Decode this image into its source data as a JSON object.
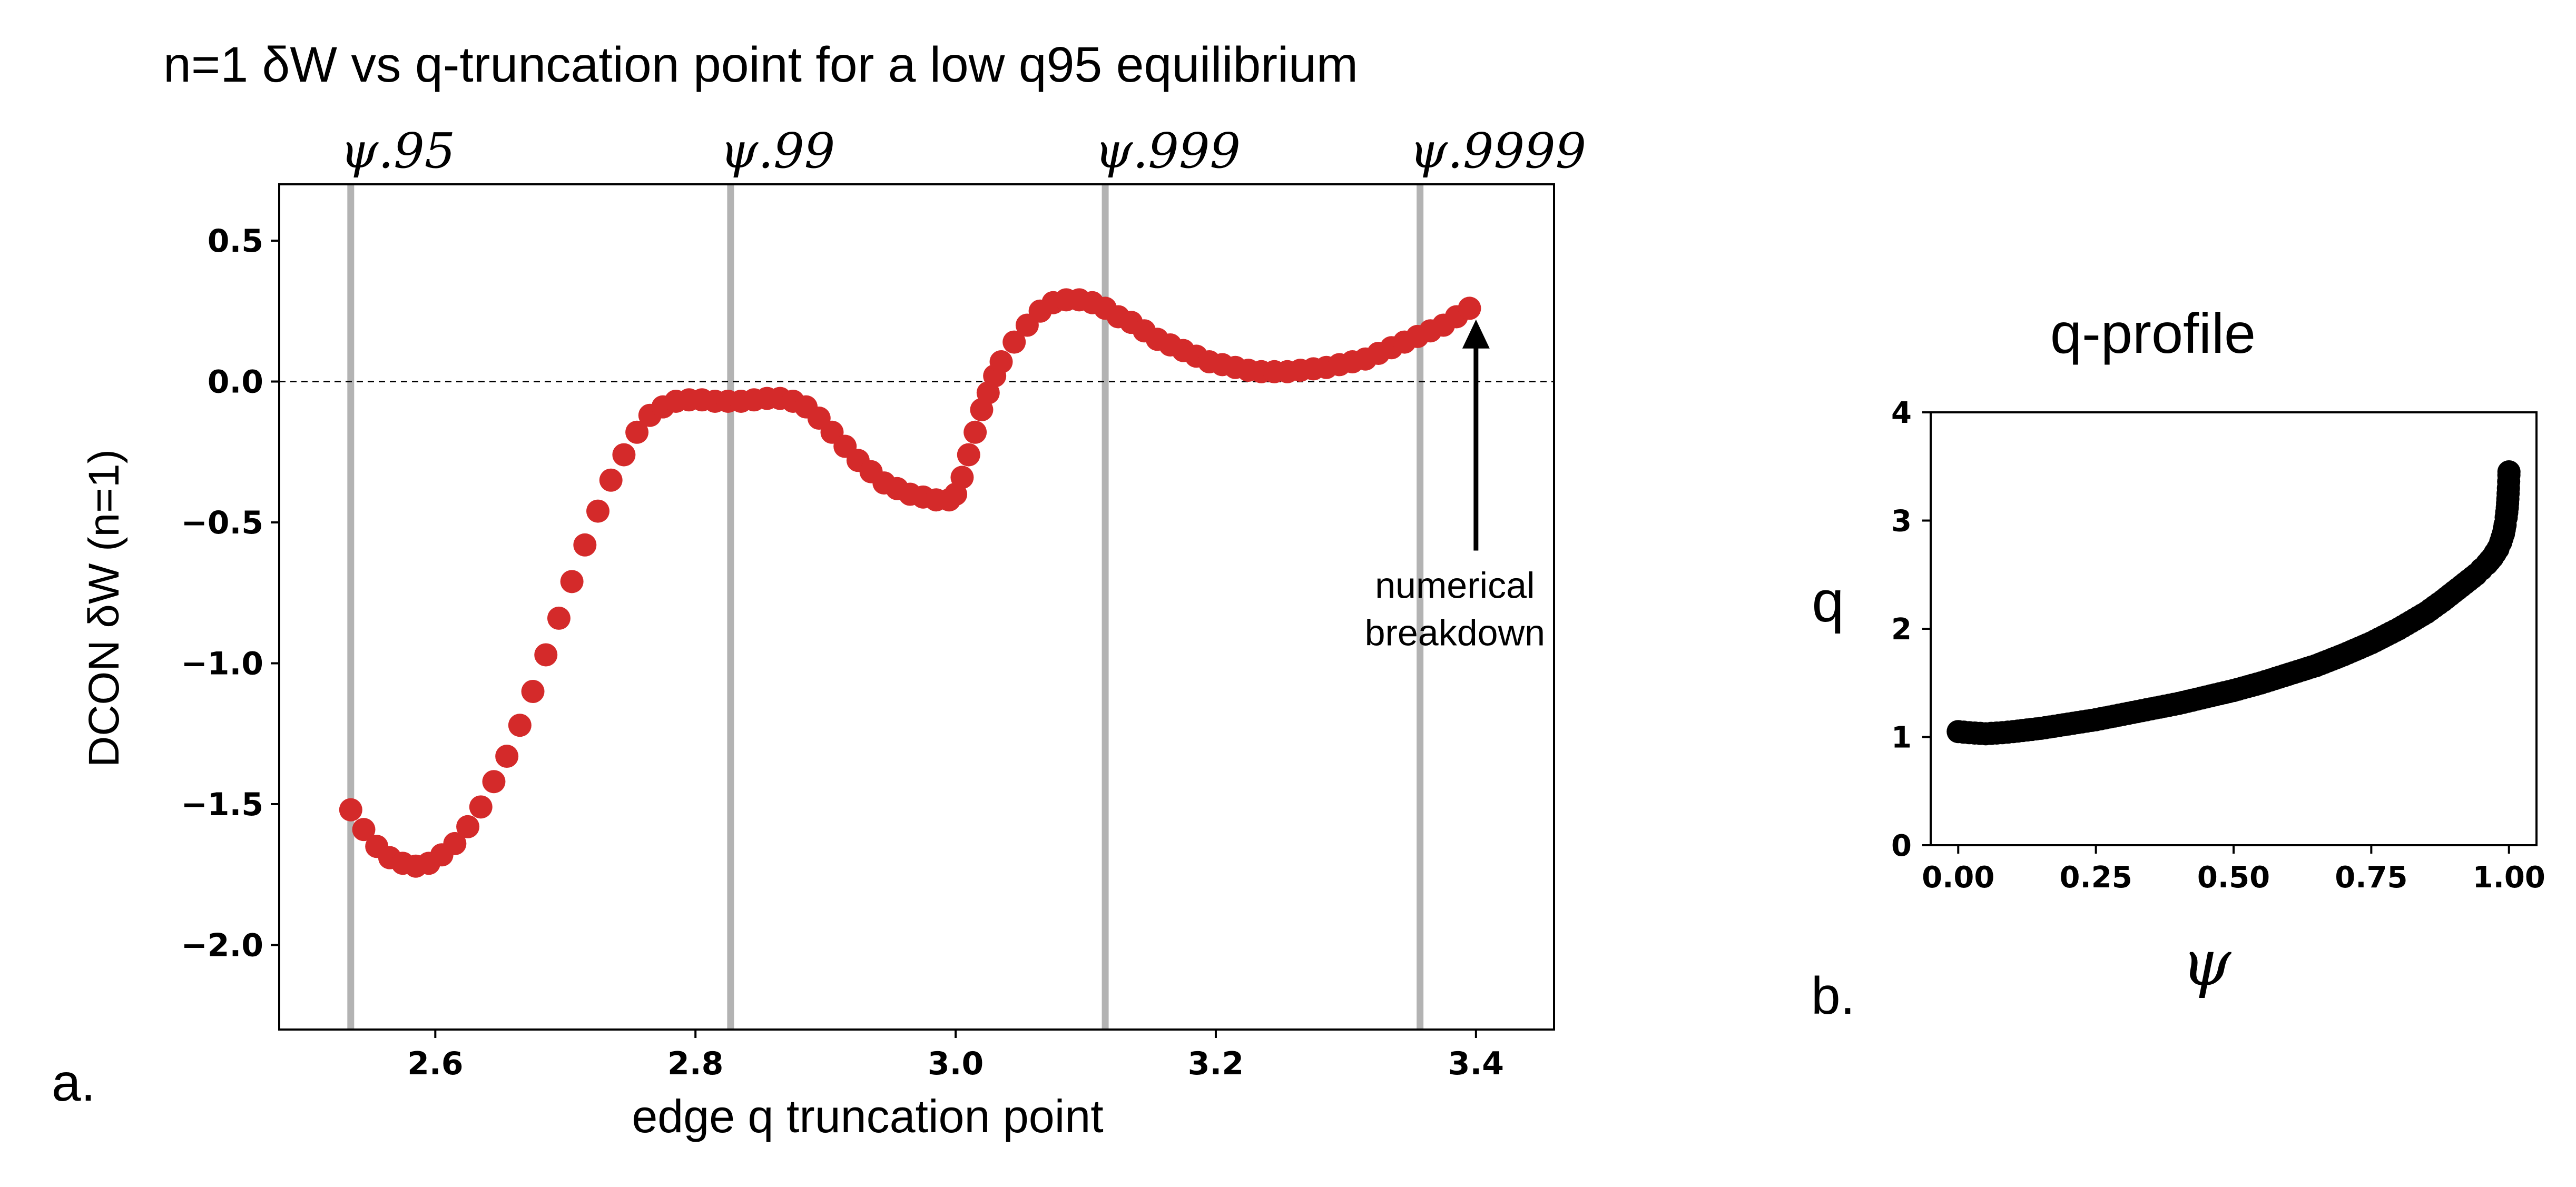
{
  "panel_a_label": "a.",
  "panel_b_label": "b.",
  "colors": {
    "points": "#d42a2a",
    "vlines": "#b3b3b3",
    "q_curve": "#000000"
  },
  "chart_data": [
    {
      "type": "scatter",
      "title": "n=1 δW vs q-truncation point for a low q95 equilibrium",
      "xlabel": "edge q truncation point",
      "ylabel": "DCON δW (n=1)",
      "xlim": [
        2.48,
        3.46
      ],
      "ylim": [
        -2.3,
        0.7
      ],
      "xticks": [
        2.6,
        2.8,
        3.0,
        3.2,
        3.4
      ],
      "xtick_labels": [
        "2.6",
        "2.8",
        "3.0",
        "3.2",
        "3.4"
      ],
      "yticks": [
        0.5,
        0.0,
        -0.5,
        -1.0,
        -1.5,
        -2.0
      ],
      "ytick_labels": [
        "0.5",
        "0.0",
        "−0.5",
        "−1.0",
        "−1.5",
        "−2.0"
      ],
      "reference_line": {
        "y": 0.0,
        "style": "dashed"
      },
      "vertical_lines": [
        {
          "x": 2.535,
          "label": "ψ.95"
        },
        {
          "x": 2.827,
          "label": "ψ.99"
        },
        {
          "x": 3.115,
          "label": "ψ.999"
        },
        {
          "x": 3.357,
          "label": "ψ.9999"
        }
      ],
      "annotation": {
        "lines": [
          "numerical",
          "breakdown"
        ],
        "arrow_from": [
          3.4,
          -0.6
        ],
        "arrow_to": [
          3.4,
          0.22
        ]
      },
      "grid": false,
      "series": [
        {
          "x": [
            2.535,
            2.545,
            2.555,
            2.565,
            2.575,
            2.585,
            2.595,
            2.605,
            2.615,
            2.625,
            2.635,
            2.645,
            2.655,
            2.665,
            2.675,
            2.685,
            2.695,
            2.705,
            2.715,
            2.725,
            2.735,
            2.745,
            2.755,
            2.765,
            2.775,
            2.785,
            2.795,
            2.805,
            2.815,
            2.825,
            2.835,
            2.845,
            2.855,
            2.865,
            2.875,
            2.885,
            2.895,
            2.905,
            2.915,
            2.925,
            2.935,
            2.945,
            2.955,
            2.965,
            2.975,
            2.985,
            2.995,
            3.0,
            3.005,
            3.01,
            3.015,
            3.02,
            3.025,
            3.03,
            3.035,
            3.045,
            3.055,
            3.065,
            3.075,
            3.085,
            3.095,
            3.105,
            3.115,
            3.125,
            3.135,
            3.145,
            3.155,
            3.165,
            3.175,
            3.185,
            3.195,
            3.205,
            3.215,
            3.225,
            3.235,
            3.245,
            3.255,
            3.265,
            3.275,
            3.285,
            3.295,
            3.305,
            3.315,
            3.325,
            3.335,
            3.345,
            3.355,
            3.365,
            3.375,
            3.385,
            3.395
          ],
          "y": [
            -1.52,
            -1.59,
            -1.65,
            -1.69,
            -1.71,
            -1.72,
            -1.71,
            -1.68,
            -1.64,
            -1.58,
            -1.51,
            -1.42,
            -1.33,
            -1.22,
            -1.1,
            -0.97,
            -0.84,
            -0.71,
            -0.58,
            -0.46,
            -0.35,
            -0.26,
            -0.18,
            -0.12,
            -0.09,
            -0.07,
            -0.065,
            -0.065,
            -0.07,
            -0.07,
            -0.07,
            -0.065,
            -0.06,
            -0.06,
            -0.07,
            -0.09,
            -0.13,
            -0.18,
            -0.23,
            -0.28,
            -0.32,
            -0.36,
            -0.38,
            -0.4,
            -0.41,
            -0.42,
            -0.42,
            -0.4,
            -0.34,
            -0.26,
            -0.18,
            -0.1,
            -0.04,
            0.02,
            0.07,
            0.14,
            0.2,
            0.25,
            0.28,
            0.29,
            0.29,
            0.28,
            0.26,
            0.23,
            0.21,
            0.18,
            0.15,
            0.13,
            0.11,
            0.09,
            0.07,
            0.06,
            0.05,
            0.04,
            0.035,
            0.035,
            0.035,
            0.04,
            0.045,
            0.05,
            0.06,
            0.07,
            0.08,
            0.1,
            0.12,
            0.14,
            0.16,
            0.18,
            0.2,
            0.23,
            0.26
          ]
        }
      ]
    },
    {
      "type": "scatter",
      "title": "q-profile",
      "xlabel": "ψ",
      "ylabel": "q",
      "xlim": [
        -0.05,
        1.05
      ],
      "ylim": [
        0,
        4
      ],
      "xticks": [
        0.0,
        0.25,
        0.5,
        0.75,
        1.0
      ],
      "xtick_labels": [
        "0.00",
        "0.25",
        "0.50",
        "0.75",
        "1.00"
      ],
      "yticks": [
        0,
        1,
        2,
        3,
        4
      ],
      "ytick_labels": [
        "0",
        "1",
        "2",
        "3",
        "4"
      ],
      "grid": false,
      "series": [
        {
          "x": [
            0.0,
            0.02,
            0.05,
            0.08,
            0.1,
            0.15,
            0.2,
            0.25,
            0.3,
            0.35,
            0.4,
            0.45,
            0.5,
            0.55,
            0.6,
            0.65,
            0.7,
            0.75,
            0.8,
            0.85,
            0.88,
            0.9,
            0.92,
            0.94,
            0.95,
            0.96,
            0.97,
            0.98,
            0.985,
            0.99,
            0.993,
            0.995,
            0.997,
            0.998,
            0.999,
            0.9995,
            0.9999,
            1.0
          ],
          "y": [
            1.05,
            1.04,
            1.03,
            1.04,
            1.05,
            1.08,
            1.12,
            1.16,
            1.21,
            1.26,
            1.31,
            1.37,
            1.43,
            1.5,
            1.58,
            1.66,
            1.76,
            1.87,
            2.0,
            2.15,
            2.26,
            2.34,
            2.42,
            2.5,
            2.55,
            2.6,
            2.66,
            2.74,
            2.8,
            2.88,
            2.96,
            3.03,
            3.12,
            3.2,
            3.3,
            3.36,
            3.42,
            3.45
          ]
        }
      ]
    }
  ]
}
